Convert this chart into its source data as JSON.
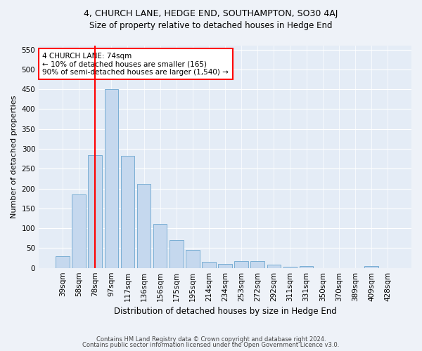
{
  "title": "4, CHURCH LANE, HEDGE END, SOUTHAMPTON, SO30 4AJ",
  "subtitle": "Size of property relative to detached houses in Hedge End",
  "xlabel": "Distribution of detached houses by size in Hedge End",
  "ylabel": "Number of detached properties",
  "categories": [
    "39sqm",
    "58sqm",
    "78sqm",
    "97sqm",
    "117sqm",
    "136sqm",
    "156sqm",
    "175sqm",
    "195sqm",
    "214sqm",
    "234sqm",
    "253sqm",
    "272sqm",
    "292sqm",
    "311sqm",
    "331sqm",
    "350sqm",
    "370sqm",
    "389sqm",
    "409sqm",
    "428sqm"
  ],
  "values": [
    30,
    185,
    285,
    450,
    283,
    212,
    110,
    70,
    46,
    15,
    10,
    18,
    18,
    8,
    3,
    5,
    0,
    0,
    0,
    5,
    0
  ],
  "bar_color": "#c5d8ee",
  "bar_edge_color": "#7aaed4",
  "vline_x_index": 2,
  "vline_color": "red",
  "annotation_text": "4 CHURCH LANE: 74sqm\n← 10% of detached houses are smaller (165)\n90% of semi-detached houses are larger (1,540) →",
  "annotation_box_color": "white",
  "annotation_box_edge": "red",
  "ylim": [
    0,
    560
  ],
  "yticks": [
    0,
    50,
    100,
    150,
    200,
    250,
    300,
    350,
    400,
    450,
    500,
    550
  ],
  "footer_line1": "Contains HM Land Registry data © Crown copyright and database right 2024.",
  "footer_line2": "Contains public sector information licensed under the Open Government Licence v3.0.",
  "bg_color": "#eef2f8",
  "plot_bg_color": "#e4ecf6",
  "title_fontsize": 9,
  "subtitle_fontsize": 8.5,
  "xlabel_fontsize": 8.5,
  "ylabel_fontsize": 8,
  "tick_fontsize": 7.5,
  "annotation_fontsize": 7.5,
  "footer_fontsize": 6
}
